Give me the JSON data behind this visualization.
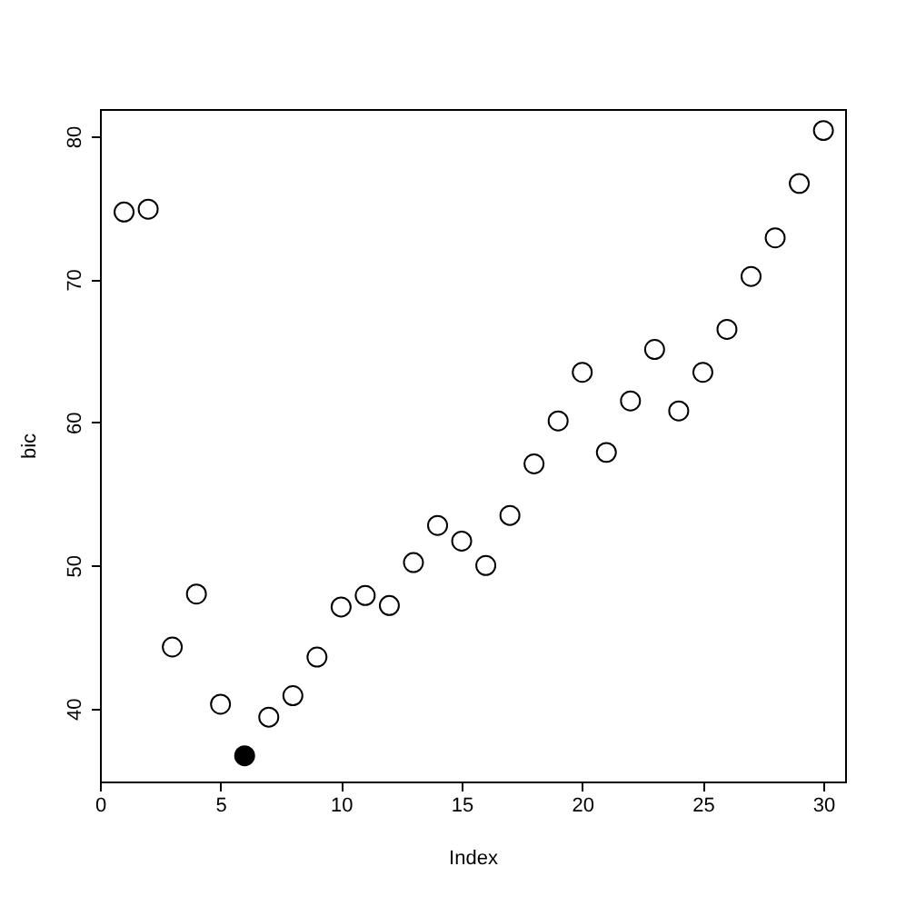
{
  "chart_data": {
    "type": "scatter",
    "xlabel": "Index",
    "ylabel": "bic",
    "xlim": [
      0,
      30.9
    ],
    "xticks": [
      0,
      5,
      10,
      15,
      20,
      25,
      30
    ],
    "ylim": [
      34.9,
      81.9
    ],
    "yticks": [
      40,
      50,
      60,
      70,
      80
    ],
    "grid": false,
    "marker": "circle",
    "series": [
      {
        "color": "#000000",
        "x": [
          1,
          2,
          3,
          4,
          5,
          6,
          7,
          8,
          9,
          10,
          11,
          12,
          13,
          14,
          15,
          16,
          17,
          18,
          19,
          20,
          21,
          22,
          23,
          24,
          25,
          26,
          27,
          28,
          29,
          30
        ],
        "values": [
          74.7,
          74.9,
          44.3,
          48.0,
          40.3,
          36.7,
          39.4,
          40.9,
          43.6,
          47.1,
          47.9,
          47.2,
          50.2,
          52.8,
          51.7,
          50.0,
          53.5,
          57.1,
          60.1,
          63.5,
          57.9,
          61.5,
          65.1,
          60.8,
          63.5,
          66.5,
          70.2,
          72.9,
          76.7,
          80.4
        ],
        "colors": [
          "#ffffff",
          "#ffffff",
          "#ffffff",
          "#ffffff",
          "#ffffff",
          "#000000",
          "#ffffff",
          "#ffffff",
          "#ffffff",
          "#ffffff",
          "#ffffff",
          "#ffffff",
          "#ffffff",
          "#ffffff",
          "#ffffff",
          "#ffffff",
          "#ffffff",
          "#ffffff",
          "#ffffff",
          "#ffffff",
          "#ffffff",
          "#ffffff",
          "#ffffff",
          "#ffffff",
          "#ffffff",
          "#ffffff",
          "#ffffff",
          "#ffffff",
          "#ffffff",
          "#ffffff"
        ]
      }
    ]
  }
}
